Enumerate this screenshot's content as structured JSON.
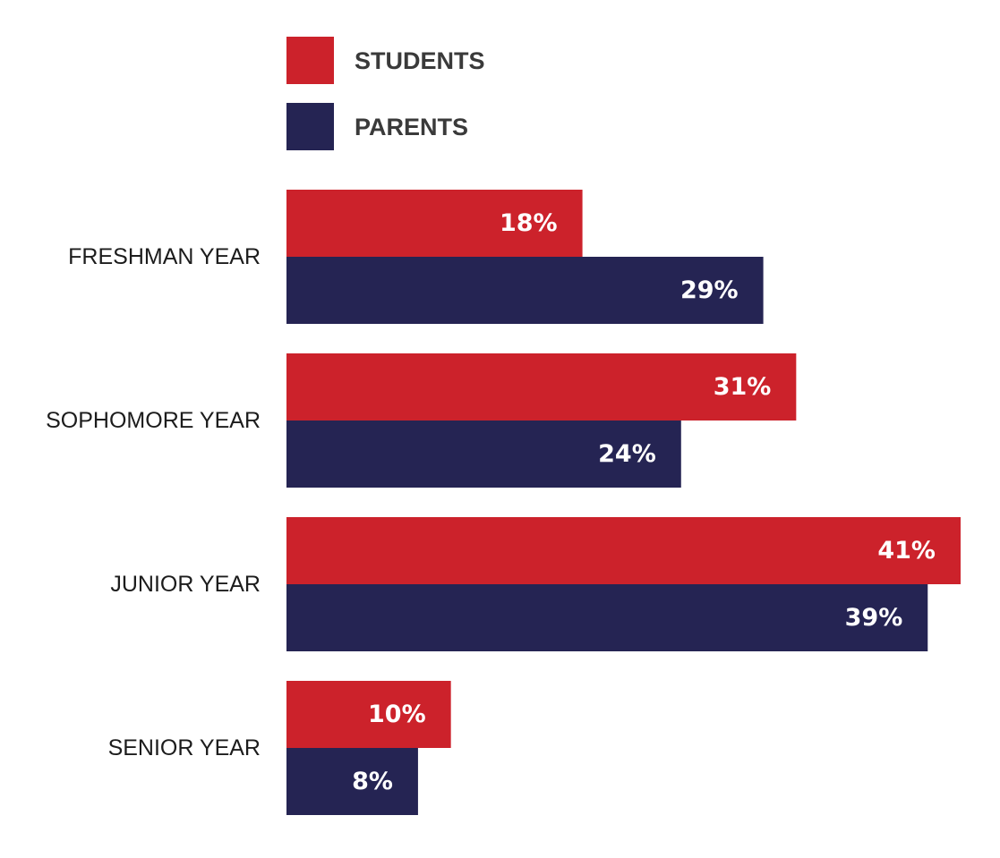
{
  "chart_data": {
    "type": "bar",
    "orientation": "horizontal",
    "categories": [
      "FRESHMAN YEAR",
      "SOPHOMORE YEAR",
      "JUNIOR YEAR",
      "SENIOR YEAR"
    ],
    "series": [
      {
        "name": "STUDENTS",
        "color": "#cc222b",
        "values": [
          18,
          31,
          41,
          10
        ]
      },
      {
        "name": "PARENTS",
        "color": "#252453",
        "values": [
          29,
          24,
          39,
          8
        ]
      }
    ],
    "value_suffix": "%",
    "xlim": [
      0,
      41
    ],
    "legend": "top-left",
    "grid": false
  }
}
